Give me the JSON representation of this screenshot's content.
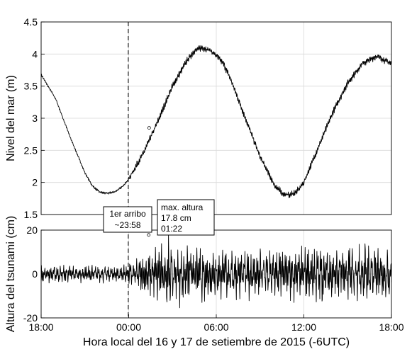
{
  "chart_data": [
    {
      "type": "line",
      "panel": "top",
      "ylabel": "Nivel del mar (m)",
      "ylim": [
        1.5,
        4.5
      ],
      "yticks": [
        1.5,
        2,
        2.5,
        3,
        3.5,
        4,
        4.5
      ],
      "ytick_labels": [
        "1.5",
        "2",
        "2.5",
        "3",
        "3.5",
        "4",
        "4.5"
      ],
      "xlim": [
        18,
        42
      ],
      "xticks": [
        18,
        24,
        30,
        36,
        42
      ],
      "grid": true,
      "series": [
        {
          "x": [
            18.0,
            19.0,
            20.0,
            21.0,
            21.5,
            22.0,
            22.5,
            23.0,
            23.5,
            24.0,
            25.0,
            26.0,
            27.0,
            28.0,
            28.5,
            29.0,
            29.5,
            30.0,
            30.5,
            31.0,
            32.0,
            33.0,
            34.0,
            34.5,
            35.0,
            35.5,
            36.0,
            37.0,
            38.0,
            39.0,
            40.0,
            41.0,
            42.0
          ],
          "values": [
            3.68,
            3.3,
            2.7,
            2.15,
            1.95,
            1.85,
            1.83,
            1.85,
            1.92,
            2.05,
            2.45,
            2.95,
            3.5,
            3.9,
            4.05,
            4.1,
            4.07,
            3.98,
            3.85,
            3.6,
            3.0,
            2.4,
            1.95,
            1.83,
            1.8,
            1.85,
            2.0,
            2.55,
            3.1,
            3.55,
            3.85,
            3.97,
            3.85
          ]
        }
      ],
      "marker": {
        "x": 25.4,
        "y": 2.85
      }
    },
    {
      "type": "line",
      "panel": "bottom",
      "ylabel": "Altura del tsunami (cm)",
      "xlabel": "Hora local del 16 y 17 de setiembre de 2015 (-6UTC)",
      "ylim": [
        -20,
        20
      ],
      "yticks": [
        -20,
        0,
        20
      ],
      "ytick_labels": [
        "-20",
        "0",
        "20"
      ],
      "xlim": [
        18,
        42
      ],
      "xticks": [
        18,
        24,
        30,
        36,
        42
      ],
      "xtick_labels": [
        "18:00",
        "00:00",
        "06:00",
        "12:00",
        "18:00"
      ],
      "grid": true,
      "series": [
        {
          "envelope_x": [
            18,
            20,
            22,
            23.5,
            24.5,
            25.5,
            26.5,
            28,
            30,
            32,
            34,
            36,
            38,
            40,
            42
          ],
          "envelope_amplitude_cm": [
            3,
            3,
            3,
            3,
            5,
            9,
            13,
            12,
            10,
            9,
            9,
            10,
            11,
            11,
            9
          ]
        }
      ],
      "max_point": {
        "x": 25.37,
        "y": 17.8
      }
    }
  ],
  "annotations": {
    "arrival": {
      "x": 23.97,
      "line1": "1er arribo",
      "line2": "~23:58"
    },
    "max_label": {
      "line1": "max. altura",
      "line2": "17.8 cm",
      "line3": "01:22"
    }
  }
}
